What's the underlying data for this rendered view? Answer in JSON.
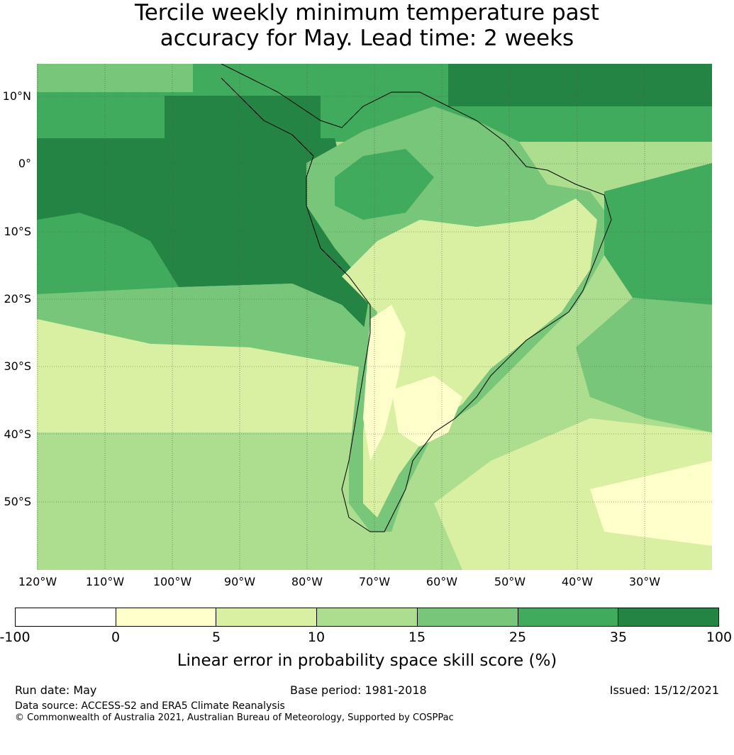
{
  "title_line1": "Tercile weekly minimum temperature past",
  "title_line2": "accuracy for May. Lead time: 2 weeks",
  "map": {
    "lat_labels": [
      "10°N",
      "0°",
      "10°S",
      "20°S",
      "30°S",
      "40°S",
      "50°S"
    ],
    "lon_labels": [
      "120°W",
      "110°W",
      "100°W",
      "90°W",
      "80°W",
      "70°W",
      "60°W",
      "50°W",
      "40°W",
      "30°W"
    ],
    "colors": {
      "land_outline": "#000000",
      "grid": "#555555"
    }
  },
  "colorbar": {
    "ticks": [
      "-100",
      "0",
      "5",
      "10",
      "15",
      "25",
      "35",
      "100"
    ],
    "colors": [
      "#ffffff",
      "#ffffcc",
      "#d9f0a3",
      "#addd8e",
      "#78c679",
      "#41ab5d",
      "#238443"
    ],
    "label": "Linear error in probability space skill score (%)"
  },
  "footer": {
    "run_date": "Run date: May",
    "base_period": "Base period: 1981-2018",
    "issued": "Issued: 15/12/2021",
    "data_source": "Data source: ACCESS-S2 and ERA5 Climate Reanalysis",
    "copyright": "© Commonwealth of Australia 2021, Australian Bureau of Meteorology, Supported by COSPPac"
  }
}
